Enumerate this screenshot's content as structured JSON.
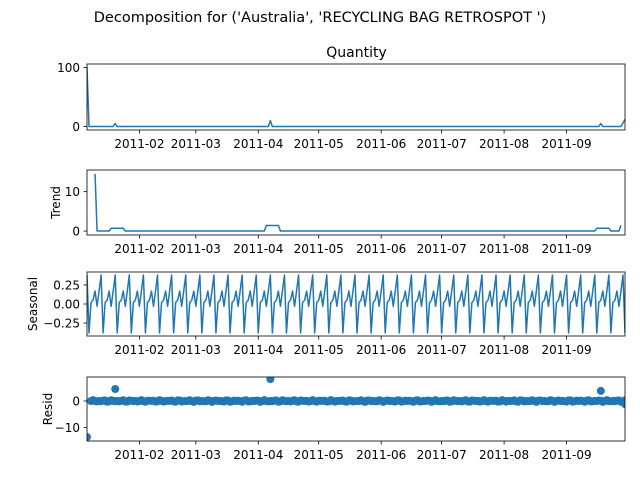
{
  "figure": {
    "suptitle": "Decomposition for ('Australia', 'RECYCLING BAG RETROSPOT ')"
  },
  "colors": {
    "line": "#1f77b4",
    "axes": "#000000",
    "background": "#ffffff"
  },
  "chart_data": [
    {
      "type": "line",
      "title": "Quantity",
      "ylabel": "",
      "x_start": "2011-01-06",
      "x_end": "2011-09-30",
      "xticks": [
        "2011-02",
        "2011-03",
        "2011-04",
        "2011-05",
        "2011-06",
        "2011-07",
        "2011-08",
        "2011-09"
      ],
      "yticks": [
        0,
        100
      ],
      "ylim": [
        -6,
        106
      ],
      "series": [
        {
          "points": [
            [
              "2011-01-06",
              100
            ],
            [
              "2011-01-07",
              0
            ],
            [
              "2011-01-19",
              0
            ],
            [
              "2011-01-20",
              5
            ],
            [
              "2011-01-21",
              0
            ],
            [
              "2011-04-06",
              0
            ],
            [
              "2011-04-07",
              10
            ],
            [
              "2011-04-08",
              0
            ],
            [
              "2011-09-17",
              0
            ],
            [
              "2011-09-18",
              5
            ],
            [
              "2011-09-19",
              0
            ],
            [
              "2011-09-28",
              0
            ],
            [
              "2011-09-30",
              12
            ]
          ]
        }
      ]
    },
    {
      "type": "line",
      "title": "",
      "ylabel": "Trend",
      "x_start": "2011-01-06",
      "x_end": "2011-09-30",
      "xticks": [
        "2011-02",
        "2011-03",
        "2011-04",
        "2011-05",
        "2011-06",
        "2011-07",
        "2011-08",
        "2011-09"
      ],
      "yticks": [
        0,
        10
      ],
      "ylim": [
        -1,
        15.5
      ],
      "series": [
        {
          "points": [
            [
              "2011-01-10",
              14.5
            ],
            [
              "2011-01-11",
              0
            ],
            [
              "2011-01-17",
              0
            ],
            [
              "2011-01-18",
              0.7
            ],
            [
              "2011-01-24",
              0.7
            ],
            [
              "2011-01-25",
              0
            ],
            [
              "2011-04-04",
              0
            ],
            [
              "2011-04-05",
              1.4
            ],
            [
              "2011-04-11",
              1.4
            ],
            [
              "2011-04-12",
              0
            ],
            [
              "2011-09-15",
              0
            ],
            [
              "2011-09-16",
              0.7
            ],
            [
              "2011-09-22",
              0.7
            ],
            [
              "2011-09-23",
              0
            ],
            [
              "2011-09-27",
              0
            ],
            [
              "2011-09-28",
              1.4
            ]
          ]
        }
      ]
    },
    {
      "type": "line",
      "title": "",
      "ylabel": "Seasonal",
      "x_start": "2011-01-06",
      "x_end": "2011-09-30",
      "xticks": [
        "2011-02",
        "2011-03",
        "2011-04",
        "2011-05",
        "2011-06",
        "2011-07",
        "2011-08",
        "2011-09"
      ],
      "yticks": [
        0.25,
        0,
        -0.25
      ],
      "ytick_labels": [
        "0.25",
        "0.00",
        "−0.25"
      ],
      "ylim": [
        -0.42,
        0.42
      ],
      "period_days": 7,
      "season_start": "2011-01-06",
      "season_pattern": [
        0.38,
        -0.38,
        0.02,
        0.05,
        0.17,
        -0.03,
        0.17
      ]
    },
    {
      "type": "scatter",
      "title": "",
      "ylabel": "Resid",
      "x_start": "2011-01-06",
      "x_end": "2011-09-30",
      "xticks": [
        "2011-02",
        "2011-03",
        "2011-04",
        "2011-05",
        "2011-06",
        "2011-07",
        "2011-08",
        "2011-09"
      ],
      "yticks": [
        0,
        -10
      ],
      "ytick_labels": [
        "0",
        "−10"
      ],
      "ylim": [
        -15,
        9
      ],
      "baseline": 0,
      "scatter_start": "2011-01-08",
      "scatter_end": "2011-09-30",
      "scatter_step_days": 1,
      "outliers": [
        [
          "2011-01-06",
          -13.5
        ],
        [
          "2011-01-20",
          4.5
        ],
        [
          "2011-04-07",
          8.2
        ],
        [
          "2011-09-18",
          3.8
        ],
        [
          "2011-09-30",
          -1.2
        ]
      ]
    }
  ]
}
